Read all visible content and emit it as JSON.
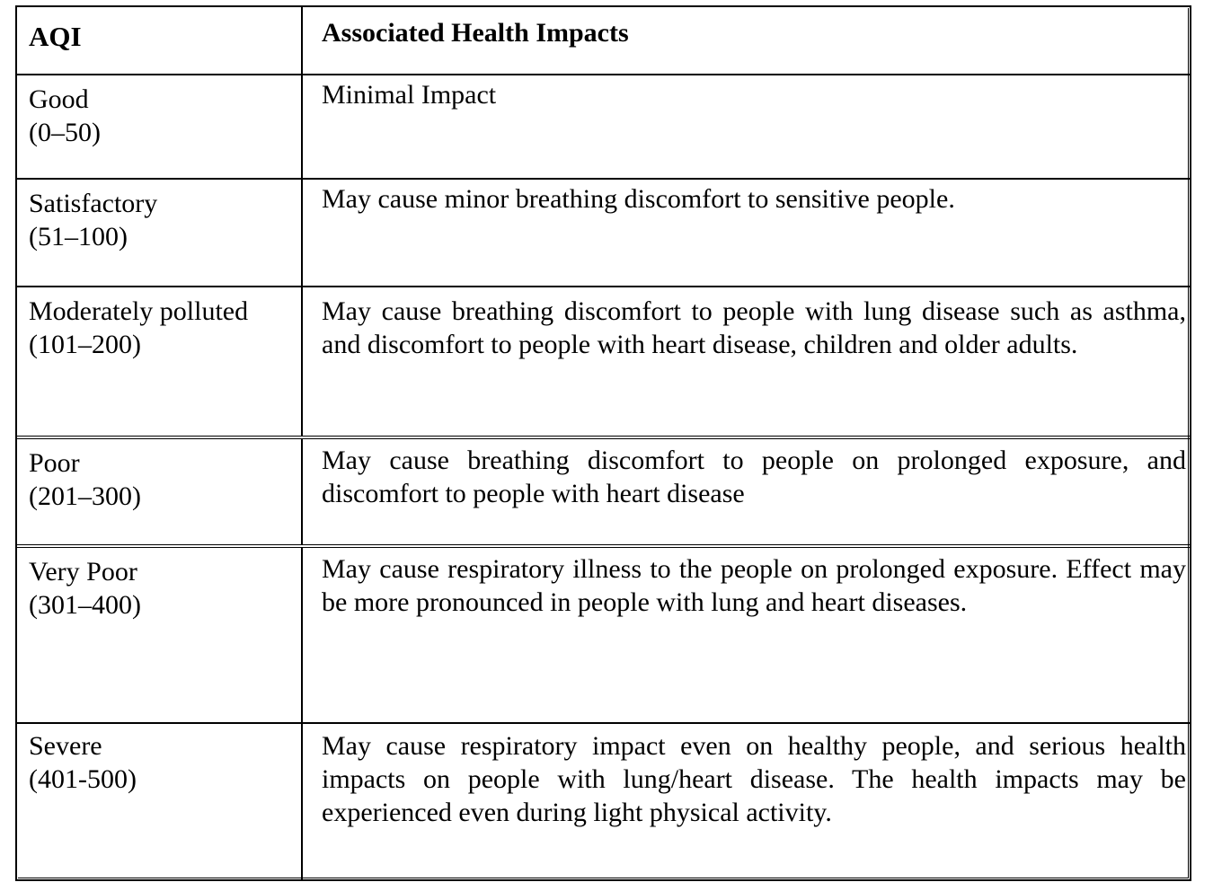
{
  "table": {
    "header": {
      "col1": "AQI",
      "col2": "Associated Health Impacts"
    },
    "rows": [
      {
        "category": "Good",
        "range": "(0–50)",
        "impact": "Minimal Impact"
      },
      {
        "category": "Satisfactory",
        "range": "(51–100)",
        "impact": "May cause minor breathing discomfort to sensitive people."
      },
      {
        "category": "Moderately polluted",
        "range": "(101–200)",
        "impact": "May cause breathing discomfort to people with lung disease such as asthma, and discomfort to people with heart disease, children and older adults."
      },
      {
        "category": "Poor",
        "range": "(201–300)",
        "impact": "May cause breathing discomfort to people on prolonged exposure, and discomfort to people with heart disease"
      },
      {
        "category": "Very Poor",
        "range": "(301–400)",
        "impact": "May cause respiratory illness to the people on prolonged exposure. Effect may be more pronounced in people with lung and heart diseases."
      },
      {
        "category": "Severe",
        "range": "(401-500)",
        "impact": "May cause respiratory impact even on healthy people, and serious health impacts on people with lung/heart disease. The health impacts may be experienced even during light physical activity."
      }
    ]
  }
}
